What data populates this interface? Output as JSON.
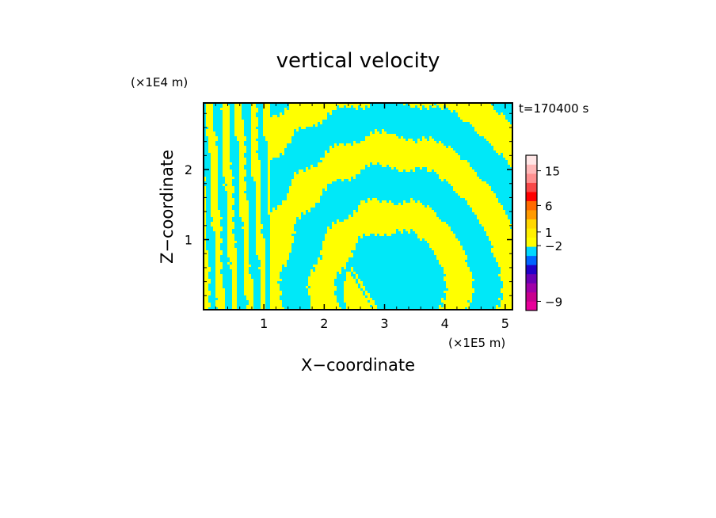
{
  "chart_data": {
    "type": "heatmap",
    "title": "vertical velocity",
    "xlabel": "X−coordinate",
    "ylabel": "Z−coordinate",
    "x_scale_label": "(×1E5 m)",
    "y_scale_label": "(×1E4 m)",
    "time_label": "t=170400 s",
    "xlim": [
      0,
      5.12
    ],
    "ylim": [
      0,
      2.95
    ],
    "x_ticks": [
      1,
      2,
      3,
      4,
      5
    ],
    "y_ticks": [
      1,
      2
    ],
    "x_tick_labels": [
      "1",
      "2",
      "3",
      "4",
      "5"
    ],
    "y_tick_labels": [
      "1",
      "2"
    ],
    "colors": {
      "positive": "#ffff00",
      "negative": "#00e8f8",
      "frame": "#000000"
    },
    "colorbar": {
      "segments": [
        {
          "color": "#e8009a"
        },
        {
          "color": "#c8008e"
        },
        {
          "color": "#a000a8"
        },
        {
          "color": "#6a00b4"
        },
        {
          "color": "#2000c8"
        },
        {
          "color": "#0064ff"
        },
        {
          "color": "#00d8ff"
        },
        {
          "color": "#ffff00"
        },
        {
          "color": "#fff000"
        },
        {
          "color": "#ffd700"
        },
        {
          "color": "#ff9a00"
        },
        {
          "color": "#ff6a00"
        },
        {
          "color": "#ff0000"
        },
        {
          "color": "#f84848"
        },
        {
          "color": "#ff9090"
        },
        {
          "color": "#ffb8b8"
        },
        {
          "color": "#ffe6e6"
        }
      ],
      "labels": [
        {
          "text": "−9",
          "index": 1.0
        },
        {
          "text": "−2",
          "index": 7.1
        },
        {
          "text": "1",
          "index": 8.6
        },
        {
          "text": "6",
          "index": 11.5
        },
        {
          "text": "15",
          "index": 15.3
        }
      ]
    },
    "field_description_bands": {
      "waves": [
        {
          "x0": 0.0,
          "slope": 0.08,
          "freq": 5.5,
          "amp": 0.28
        },
        {
          "x0": 1.6,
          "slope": -0.25,
          "freq": 3.0,
          "amp": 0.35
        },
        {
          "x0": 3.0,
          "slope": 0.0,
          "freq": 2.2,
          "amp": 0.45
        },
        {
          "x0": 4.4,
          "slope": 0.25,
          "freq": 3.2,
          "amp": 0.35
        }
      ],
      "dome_center": [
        3.1,
        0.25
      ],
      "dome_radius": [
        1.4,
        1.4
      ]
    }
  }
}
